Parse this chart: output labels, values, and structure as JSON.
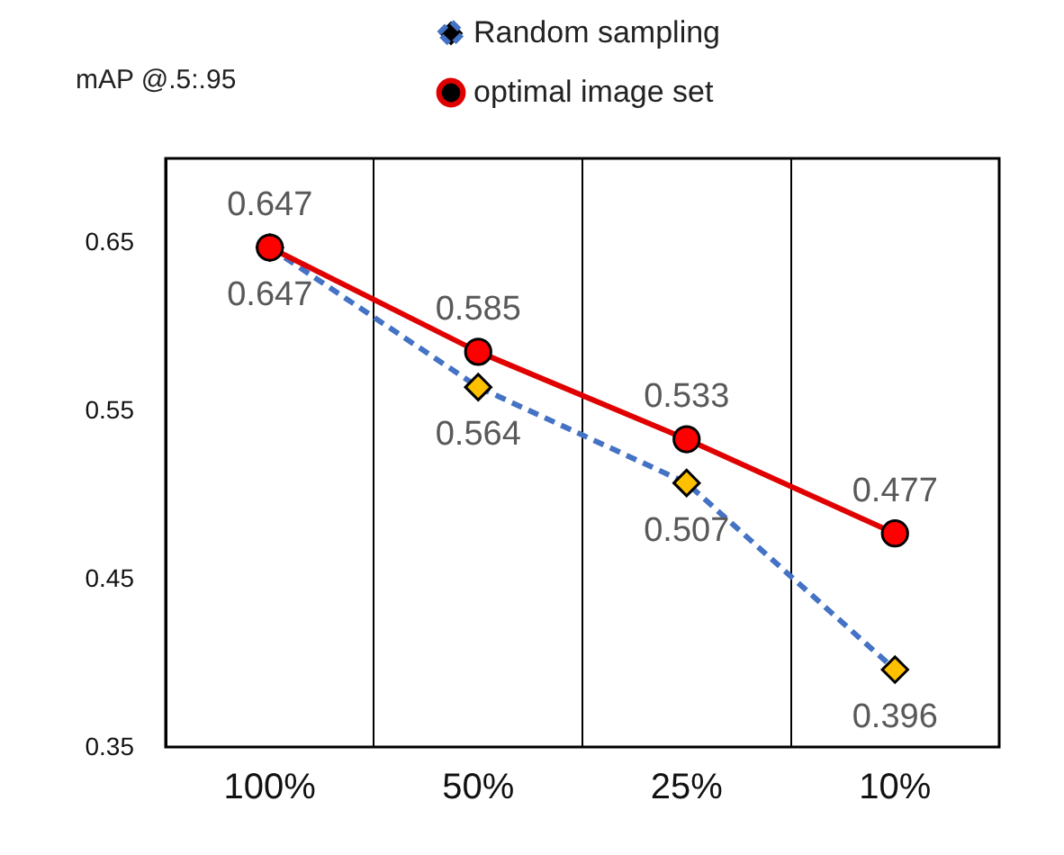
{
  "chart_data": {
    "type": "line",
    "title": "mAP @.5:.95",
    "categories": [
      "100%",
      "50%",
      "25%",
      "10%"
    ],
    "series": [
      {
        "name": "Random sampling",
        "color": "#4472c4",
        "colors": [
          "#ffc000",
          "#ffc000",
          "#ffc000",
          "#ffc000"
        ],
        "marker": "diamond",
        "line_style": "dashed",
        "values": [
          0.647,
          0.564,
          0.507,
          0.396
        ]
      },
      {
        "name": "optimal image set",
        "color": "#e00000",
        "colors": [
          "#ff0000",
          "#ff0000",
          "#ff0000",
          "#ff0000"
        ],
        "marker": "circle",
        "line_style": "solid",
        "values": [
          0.647,
          0.585,
          0.533,
          0.477
        ]
      }
    ],
    "ylim": [
      0.35,
      0.7
    ],
    "yticks": [
      0.35,
      0.45,
      0.55,
      0.65
    ],
    "grid": "x",
    "legend": "top right",
    "data_labels": true
  }
}
